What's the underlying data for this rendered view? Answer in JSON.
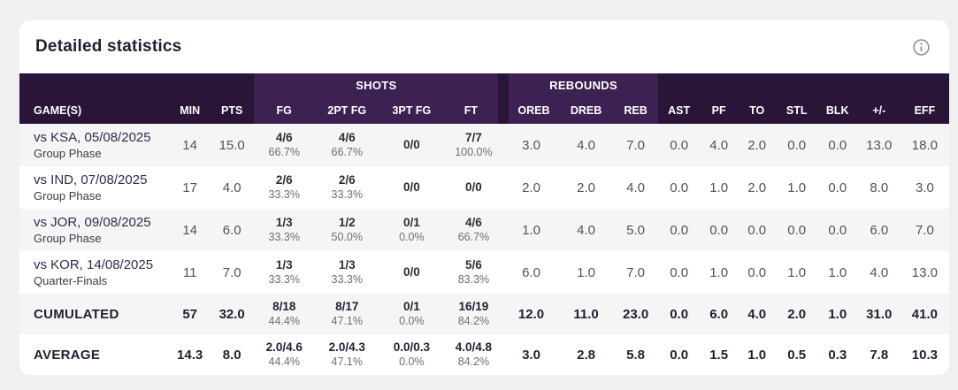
{
  "card": {
    "title": "Detailed statistics"
  },
  "table": {
    "groups": {
      "shots": "SHOTS",
      "rebounds": "REBOUNDS"
    },
    "columns": [
      "GAME(S)",
      "MIN",
      "PTS",
      "FG",
      "2PT FG",
      "3PT FG",
      "FT",
      "OREB",
      "DREB",
      "REB",
      "AST",
      "PF",
      "TO",
      "STL",
      "BLK",
      "+/-",
      "EFF"
    ],
    "rows": [
      {
        "game": "vs KSA, 05/08/2025",
        "phase": "Group Phase",
        "cells": [
          {
            "main": "14"
          },
          {
            "main": "15.0"
          },
          {
            "main": "4/6",
            "sub": "66.7%"
          },
          {
            "main": "4/6",
            "sub": "66.7%"
          },
          {
            "main": "0/0"
          },
          {
            "main": "7/7",
            "sub": "100.0%"
          },
          {
            "main": "3.0"
          },
          {
            "main": "4.0"
          },
          {
            "main": "7.0"
          },
          {
            "main": "0.0"
          },
          {
            "main": "4.0"
          },
          {
            "main": "2.0"
          },
          {
            "main": "0.0"
          },
          {
            "main": "0.0"
          },
          {
            "main": "13.0"
          },
          {
            "main": "18.0"
          }
        ]
      },
      {
        "game": "vs IND, 07/08/2025",
        "phase": "Group Phase",
        "cells": [
          {
            "main": "17"
          },
          {
            "main": "4.0"
          },
          {
            "main": "2/6",
            "sub": "33.3%"
          },
          {
            "main": "2/6",
            "sub": "33.3%"
          },
          {
            "main": "0/0"
          },
          {
            "main": "0/0"
          },
          {
            "main": "2.0"
          },
          {
            "main": "2.0"
          },
          {
            "main": "4.0"
          },
          {
            "main": "0.0"
          },
          {
            "main": "1.0"
          },
          {
            "main": "2.0"
          },
          {
            "main": "1.0"
          },
          {
            "main": "0.0"
          },
          {
            "main": "8.0"
          },
          {
            "main": "3.0"
          }
        ]
      },
      {
        "game": "vs JOR, 09/08/2025",
        "phase": "Group Phase",
        "cells": [
          {
            "main": "14"
          },
          {
            "main": "6.0"
          },
          {
            "main": "1/3",
            "sub": "33.3%"
          },
          {
            "main": "1/2",
            "sub": "50.0%"
          },
          {
            "main": "0/1",
            "sub": "0.0%"
          },
          {
            "main": "4/6",
            "sub": "66.7%"
          },
          {
            "main": "1.0"
          },
          {
            "main": "4.0"
          },
          {
            "main": "5.0"
          },
          {
            "main": "0.0"
          },
          {
            "main": "0.0"
          },
          {
            "main": "0.0"
          },
          {
            "main": "0.0"
          },
          {
            "main": "0.0"
          },
          {
            "main": "6.0"
          },
          {
            "main": "7.0"
          }
        ]
      },
      {
        "game": "vs KOR, 14/08/2025",
        "phase": "Quarter-Finals",
        "cells": [
          {
            "main": "11"
          },
          {
            "main": "7.0"
          },
          {
            "main": "1/3",
            "sub": "33.3%"
          },
          {
            "main": "1/3",
            "sub": "33.3%"
          },
          {
            "main": "0/0"
          },
          {
            "main": "5/6",
            "sub": "83.3%"
          },
          {
            "main": "6.0"
          },
          {
            "main": "1.0"
          },
          {
            "main": "7.0"
          },
          {
            "main": "0.0"
          },
          {
            "main": "1.0"
          },
          {
            "main": "0.0"
          },
          {
            "main": "1.0"
          },
          {
            "main": "1.0"
          },
          {
            "main": "4.0"
          },
          {
            "main": "13.0"
          }
        ]
      }
    ],
    "totals": [
      {
        "label": "CUMULATED",
        "cells": [
          {
            "main": "57"
          },
          {
            "main": "32.0"
          },
          {
            "main": "8/18",
            "sub": "44.4%"
          },
          {
            "main": "8/17",
            "sub": "47.1%"
          },
          {
            "main": "0/1",
            "sub": "0.0%"
          },
          {
            "main": "16/19",
            "sub": "84.2%"
          },
          {
            "main": "12.0"
          },
          {
            "main": "11.0"
          },
          {
            "main": "23.0"
          },
          {
            "main": "0.0"
          },
          {
            "main": "6.0"
          },
          {
            "main": "4.0"
          },
          {
            "main": "2.0"
          },
          {
            "main": "1.0"
          },
          {
            "main": "31.0"
          },
          {
            "main": "41.0"
          }
        ]
      },
      {
        "label": "AVERAGE",
        "cells": [
          {
            "main": "14.3"
          },
          {
            "main": "8.0"
          },
          {
            "main": "2.0/4.6",
            "sub": "44.4%"
          },
          {
            "main": "2.0/4.3",
            "sub": "47.1%"
          },
          {
            "main": "0.0/0.3",
            "sub": "0.0%"
          },
          {
            "main": "4.0/4.8",
            "sub": "84.2%"
          },
          {
            "main": "3.0"
          },
          {
            "main": "2.8"
          },
          {
            "main": "5.8"
          },
          {
            "main": "0.0"
          },
          {
            "main": "1.5"
          },
          {
            "main": "1.0"
          },
          {
            "main": "0.5"
          },
          {
            "main": "0.3"
          },
          {
            "main": "7.8"
          },
          {
            "main": "10.3"
          }
        ]
      }
    ],
    "colors": {
      "header_dark": "#2a1539",
      "header_light": "#3d2153",
      "row_alt": "#f6f5f6",
      "accent_purple": "#35284d"
    }
  }
}
